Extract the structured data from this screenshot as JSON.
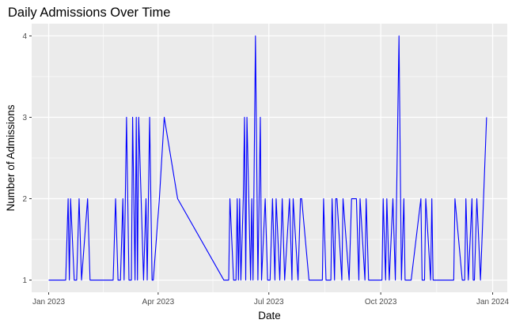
{
  "chart_data": {
    "type": "line",
    "title": "Daily Admissions Over Time",
    "xlabel": "Date",
    "ylabel": "Number of Admissions",
    "x_range": [
      "2022-12-18",
      "2024-01-13"
    ],
    "ylim": [
      0.85,
      4.15
    ],
    "x_ticks": [
      {
        "date": "2023-01-01",
        "label": "Jan 2023"
      },
      {
        "date": "2023-04-01",
        "label": "Apr 2023"
      },
      {
        "date": "2023-07-01",
        "label": "Jul 2023"
      },
      {
        "date": "2023-10-01",
        "label": "Oct 2023"
      },
      {
        "date": "2024-01-01",
        "label": "Jan 2024"
      }
    ],
    "x_minor_ticks": [
      "2023-02-15",
      "2023-05-16",
      "2023-08-16",
      "2023-11-16"
    ],
    "y_ticks": [
      1,
      2,
      3,
      4
    ],
    "grid": true,
    "series": [
      {
        "color": "#0000FF",
        "x": [
          "2023-01-01",
          "2023-01-15",
          "2023-01-17",
          "2023-01-18",
          "2023-01-19",
          "2023-01-22",
          "2023-01-24",
          "2023-01-26",
          "2023-01-28",
          "2023-02-02",
          "2023-02-04",
          "2023-02-08",
          "2023-02-23",
          "2023-02-25",
          "2023-02-27",
          "2023-03-01",
          "2023-03-03",
          "2023-03-04",
          "2023-03-06",
          "2023-03-08",
          "2023-03-10",
          "2023-03-11",
          "2023-03-13",
          "2023-03-14",
          "2023-03-15",
          "2023-03-16",
          "2023-03-20",
          "2023-03-22",
          "2023-03-23",
          "2023-03-25",
          "2023-03-27",
          "2023-03-28",
          "2023-04-02",
          "2023-04-06",
          "2023-04-17",
          "2023-05-25",
          "2023-05-29",
          "2023-05-30",
          "2023-06-02",
          "2023-06-04",
          "2023-06-05",
          "2023-06-06",
          "2023-06-07",
          "2023-06-08",
          "2023-06-10",
          "2023-06-11",
          "2023-06-12",
          "2023-06-13",
          "2023-06-16",
          "2023-06-17",
          "2023-06-18",
          "2023-06-20",
          "2023-06-22",
          "2023-06-24",
          "2023-06-25",
          "2023-06-28",
          "2023-06-30",
          "2023-07-02",
          "2023-07-04",
          "2023-07-06",
          "2023-07-07",
          "2023-07-10",
          "2023-07-12",
          "2023-07-14",
          "2023-07-18",
          "2023-07-20",
          "2023-07-21",
          "2023-07-25",
          "2023-07-27",
          "2023-07-28",
          "2023-08-03",
          "2023-08-14",
          "2023-08-15",
          "2023-08-17",
          "2023-08-21",
          "2023-08-22",
          "2023-08-24",
          "2023-08-25",
          "2023-08-26",
          "2023-08-30",
          "2023-08-31",
          "2023-09-05",
          "2023-09-07",
          "2023-09-11",
          "2023-09-13",
          "2023-09-14",
          "2023-09-18",
          "2023-09-19",
          "2023-09-21",
          "2023-10-02",
          "2023-10-03",
          "2023-10-05",
          "2023-10-06",
          "2023-10-08",
          "2023-10-11",
          "2023-10-13",
          "2023-10-14",
          "2023-10-16",
          "2023-10-18",
          "2023-10-20",
          "2023-10-21",
          "2023-10-26",
          "2023-11-03",
          "2023-11-04",
          "2023-11-06",
          "2023-11-07",
          "2023-11-11",
          "2023-11-12",
          "2023-11-13",
          "2023-11-30",
          "2023-12-01",
          "2023-12-07",
          "2023-12-09",
          "2023-12-10",
          "2023-12-12",
          "2023-12-15",
          "2023-12-16",
          "2023-12-17",
          "2023-12-19",
          "2023-12-22",
          "2023-12-27"
        ],
        "y": [
          1,
          1,
          2,
          1,
          2,
          1,
          1,
          2,
          1,
          2,
          1,
          1,
          1,
          2,
          1,
          1,
          2,
          1,
          3,
          1,
          1,
          3,
          1,
          3,
          1,
          3,
          1,
          2,
          1,
          3,
          1,
          1,
          2,
          3,
          2,
          1,
          1,
          2,
          1,
          1,
          2,
          1,
          2,
          1,
          2,
          3,
          1,
          3,
          1,
          2,
          1,
          4,
          1,
          3,
          1,
          2,
          1,
          1,
          2,
          1,
          2,
          1,
          2,
          1,
          2,
          1,
          2,
          1,
          2,
          2,
          1,
          1,
          2,
          1,
          1,
          2,
          1,
          2,
          2,
          1,
          2,
          1,
          2,
          2,
          1,
          2,
          1,
          2,
          1,
          1,
          2,
          1,
          2,
          1,
          2,
          1,
          2,
          4,
          1,
          2,
          1,
          1,
          2,
          1,
          1,
          2,
          1,
          2,
          1,
          1,
          2,
          1,
          1,
          2,
          1,
          2,
          1,
          1,
          2,
          1,
          3
        ]
      }
    ]
  }
}
